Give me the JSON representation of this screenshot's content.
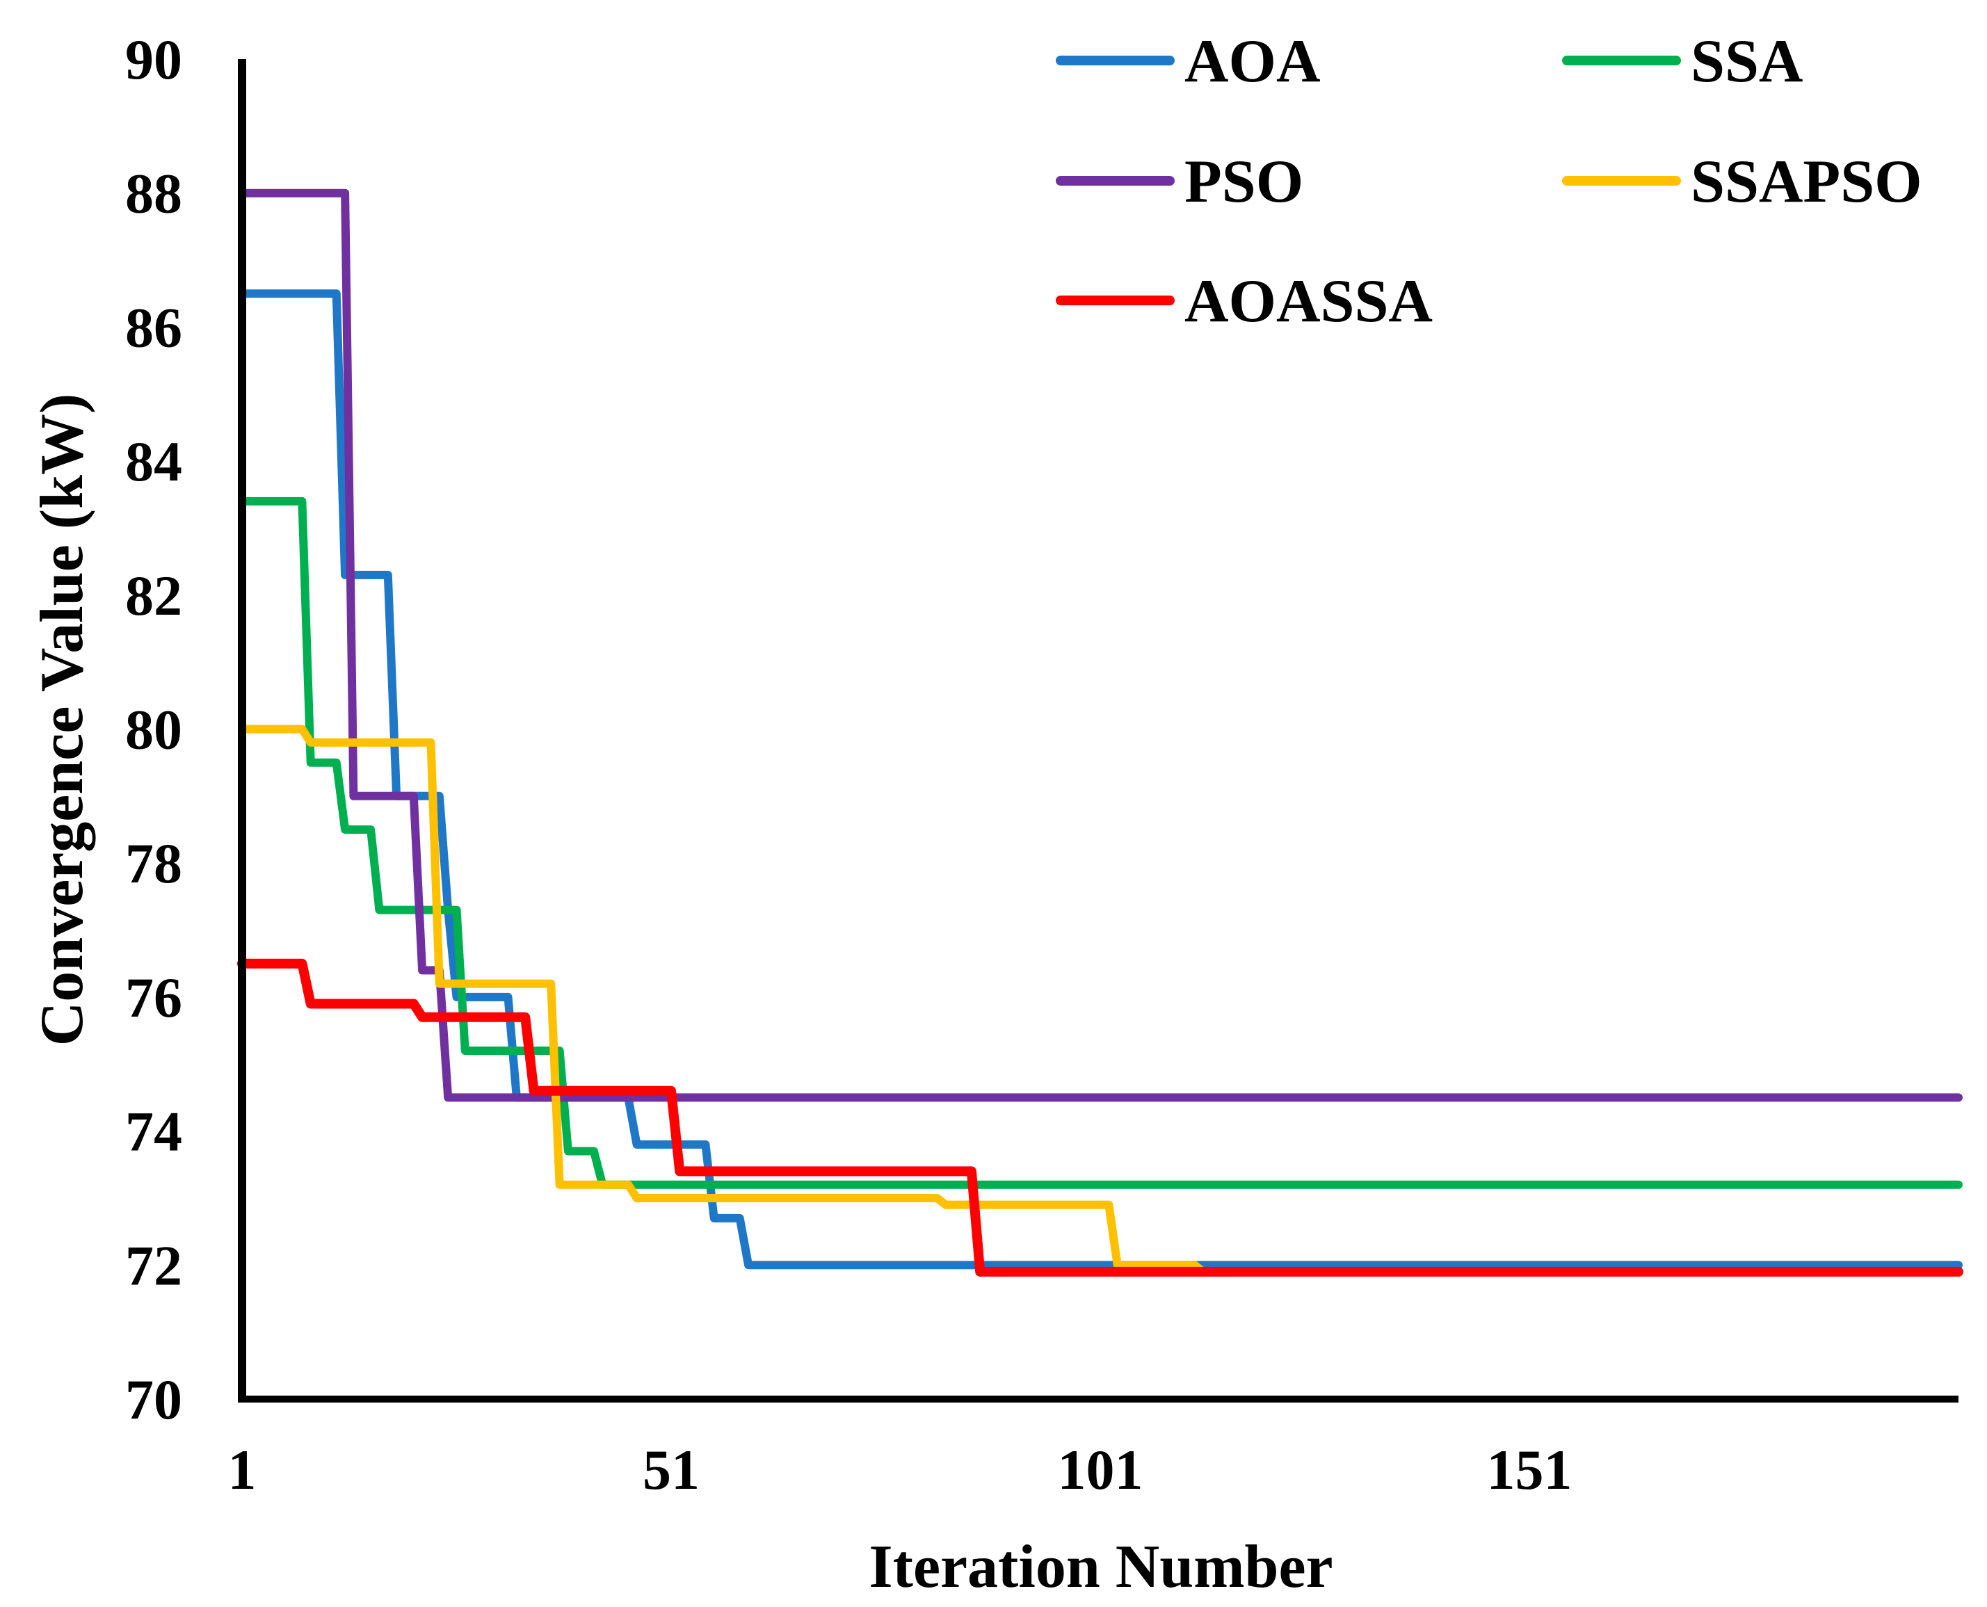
{
  "chart_data": {
    "type": "line",
    "title": "",
    "xlabel": "Iteration Number",
    "ylabel": "Convergence Value (kW)",
    "xlim": [
      1,
      201
    ],
    "ylim": [
      70,
      90
    ],
    "x_ticks": [
      1,
      51,
      101,
      151
    ],
    "y_ticks": [
      70,
      72,
      74,
      76,
      78,
      80,
      82,
      84,
      86,
      88,
      90
    ],
    "grid": false,
    "legend_position": "top-right",
    "series": [
      {
        "name": "AOA",
        "color": "#1f77c8",
        "points": [
          [
            1,
            86.5
          ],
          [
            12,
            86.5
          ],
          [
            13,
            82.3
          ],
          [
            18,
            82.3
          ],
          [
            19,
            79
          ],
          [
            24,
            79
          ],
          [
            25,
            77.3
          ],
          [
            26,
            76
          ],
          [
            32,
            76
          ],
          [
            33,
            74.5
          ],
          [
            46,
            74.5
          ],
          [
            47,
            73.8
          ],
          [
            55,
            73.8
          ],
          [
            56,
            72.7
          ],
          [
            59,
            72.7
          ],
          [
            60,
            72
          ],
          [
            201,
            72
          ]
        ]
      },
      {
        "name": "SSA",
        "color": "#00b050",
        "points": [
          [
            1,
            83.4
          ],
          [
            8,
            83.4
          ],
          [
            9,
            79.5
          ],
          [
            12,
            79.5
          ],
          [
            13,
            78.5
          ],
          [
            16,
            78.5
          ],
          [
            17,
            77.3
          ],
          [
            26,
            77.3
          ],
          [
            27,
            75.2
          ],
          [
            38,
            75.2
          ],
          [
            39,
            73.7
          ],
          [
            42,
            73.7
          ],
          [
            43,
            73.2
          ],
          [
            201,
            73.2
          ]
        ]
      },
      {
        "name": "PSO",
        "color": "#7030a0",
        "points": [
          [
            1,
            88
          ],
          [
            13,
            88
          ],
          [
            14,
            79
          ],
          [
            21,
            79
          ],
          [
            22,
            76.4
          ],
          [
            24,
            76.4
          ],
          [
            25,
            74.5
          ],
          [
            201,
            74.5
          ]
        ]
      },
      {
        "name": "SSAPSO",
        "color": "#ffc000",
        "points": [
          [
            1,
            80
          ],
          [
            8,
            80
          ],
          [
            9,
            79.8
          ],
          [
            23,
            79.8
          ],
          [
            24,
            76.2
          ],
          [
            37,
            76.2
          ],
          [
            38,
            73.2
          ],
          [
            46,
            73.2
          ],
          [
            47,
            73
          ],
          [
            82,
            73
          ],
          [
            83,
            72.9
          ],
          [
            102,
            72.9
          ],
          [
            103,
            72
          ],
          [
            112,
            72
          ],
          [
            113,
            71.9
          ],
          [
            201,
            71.9
          ]
        ]
      },
      {
        "name": "AOASSA",
        "color": "#ff0000",
        "points": [
          [
            1,
            76.5
          ],
          [
            8,
            76.5
          ],
          [
            9,
            75.9
          ],
          [
            21,
            75.9
          ],
          [
            22,
            75.7
          ],
          [
            34,
            75.7
          ],
          [
            35,
            74.6
          ],
          [
            51,
            74.6
          ],
          [
            52,
            73.4
          ],
          [
            86,
            73.4
          ],
          [
            87,
            71.9
          ],
          [
            201,
            71.9
          ]
        ]
      }
    ]
  }
}
